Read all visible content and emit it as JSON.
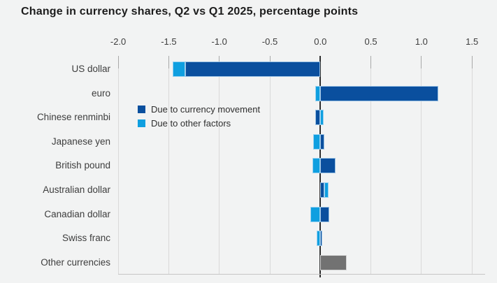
{
  "title": "Change in currency shares, Q2 vs Q1 2025, percentage points",
  "colors": {
    "background": "#f2f3f3",
    "movement_blue": "#0a4f9e",
    "other_factors_blue": "#0f9fe0",
    "other_currencies_gray": "#727272",
    "gridline": "#d9d9d9",
    "zero_axis": "#2f2f2f",
    "text": "#3d3d3d"
  },
  "chart_data": {
    "type": "bar",
    "orientation": "horizontal",
    "stacked": true,
    "title": "Change in currency shares, Q2 vs Q1 2025, percentage points",
    "units": "percentage points",
    "xlim": [
      -2.0,
      1.5
    ],
    "xticks": [
      -2.0,
      -1.5,
      -1.0,
      -0.5,
      0.0,
      0.5,
      1.0,
      1.5
    ],
    "xtick_labels": [
      "-2.0",
      "-1.5",
      "-1.0",
      "-0.5",
      "0.0",
      "0.5",
      "1.0",
      "1.5"
    ],
    "grid": true,
    "legend_position": "inside-upper-left",
    "categories": [
      "US dollar",
      "euro",
      "Chinese renminbi",
      "Japanese yen",
      "British pound",
      "Australian dollar",
      "Canadian dollar",
      "Swiss franc",
      "Other currencies"
    ],
    "series": [
      {
        "name": "Due to currency movement",
        "color": "#0a4f9e",
        "values": [
          -1.34,
          1.17,
          -0.05,
          0.04,
          0.15,
          0.04,
          0.09,
          0.02,
          null
        ]
      },
      {
        "name": "Due to other factors",
        "color": "#0f9fe0",
        "values": [
          -0.12,
          -0.05,
          0.03,
          -0.07,
          -0.08,
          0.04,
          -0.1,
          -0.04,
          null
        ]
      }
    ],
    "single_bars": [
      {
        "category": "Other currencies",
        "value": 0.26,
        "color": "#727272"
      }
    ]
  }
}
